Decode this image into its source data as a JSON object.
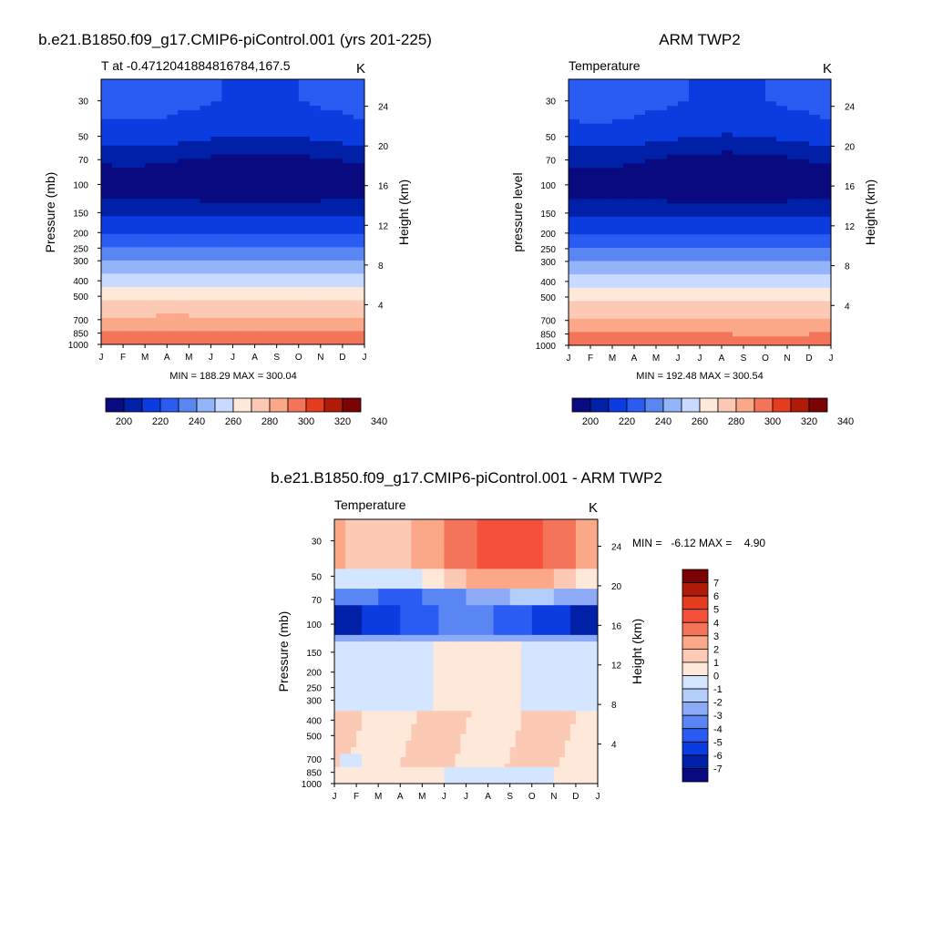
{
  "figure": {
    "panel1": {
      "title": "b.e21.B1850.f09_g17.CMIP6-piControl.001 (yrs 201-225)",
      "subtitle": "T at -0.47120418848167 84,167.5",
      "subtitle_exact": "T at -0.4712041884816784,167.5",
      "units": "K",
      "ylabel": "Pressure (mb)",
      "ylabel_right": "Height (km)",
      "minmax": "MIN = 188.29 MAX = 300.04"
    },
    "panel2": {
      "title": "ARM TWP2",
      "subtitle": "Temperature",
      "units": "K",
      "ylabel": "pressure level",
      "ylabel_right": "Height (km)",
      "minmax": "MIN = 192.48 MAX = 300.54"
    },
    "panel3": {
      "title": "b.e21.B1850.f09_g17.CMIP6-piControl.001 - ARM TWP2",
      "subtitle": "Temperature",
      "units": "K",
      "ylabel": "Pressure (mb)",
      "ylabel_right": "Height (km)",
      "minmax": "MIN =   -6.12 MAX =    4.90"
    }
  },
  "chart_data": [
    {
      "type": "heatmap",
      "panel": "model",
      "x_ticks": [
        "J",
        "F",
        "M",
        "A",
        "M",
        "J",
        "J",
        "A",
        "S",
        "O",
        "N",
        "D",
        "J"
      ],
      "y_ticks_pressure": [
        "30",
        "50",
        "70",
        "100",
        "150",
        "200",
        "250",
        "300",
        "400",
        "500",
        "700",
        "850",
        "1000"
      ],
      "y_ticks_height": [
        "24",
        "20",
        "16",
        "12",
        "8",
        "4"
      ],
      "ylog": true,
      "colorbar": {
        "tick_labels": [
          "200",
          "220",
          "240",
          "260",
          "280",
          "300",
          "320",
          "340"
        ],
        "colors": [
          "#0a0a80",
          "#0020a8",
          "#0a3ce0",
          "#2a5cf4",
          "#5a86f4",
          "#94b4fa",
          "#c8daff",
          "#fde8da",
          "#fccab4",
          "#fba888",
          "#f4745a",
          "#e43c1e",
          "#b01a08",
          "#7a0404"
        ]
      },
      "profile": [
        {
          "p": 30,
          "t": 222
        },
        {
          "p": 50,
          "t": 213
        },
        {
          "p": 70,
          "t": 199
        },
        {
          "p": 100,
          "t": 192
        },
        {
          "p": 140,
          "t": 204
        },
        {
          "p": 150,
          "t": 208
        },
        {
          "p": 200,
          "t": 219
        },
        {
          "p": 250,
          "t": 231
        },
        {
          "p": 300,
          "t": 241
        },
        {
          "p": 400,
          "t": 256
        },
        {
          "p": 500,
          "t": 267
        },
        {
          "p": 700,
          "t": 282
        },
        {
          "p": 850,
          "t": 291
        },
        {
          "p": 1000,
          "t": 299
        }
      ],
      "min": 188.29,
      "max": 300.04
    },
    {
      "type": "heatmap",
      "panel": "observation",
      "x_ticks": [
        "J",
        "F",
        "M",
        "A",
        "M",
        "J",
        "J",
        "A",
        "S",
        "O",
        "N",
        "D",
        "J"
      ],
      "y_ticks_pressure": [
        "30",
        "50",
        "70",
        "100",
        "150",
        "200",
        "250",
        "300",
        "400",
        "500",
        "700",
        "850",
        "1000"
      ],
      "y_ticks_height": [
        "24",
        "20",
        "16",
        "12",
        "8",
        "4"
      ],
      "ylog": true,
      "colorbar": {
        "tick_labels": [
          "200",
          "220",
          "240",
          "260",
          "280",
          "300",
          "320",
          "340"
        ],
        "colors": [
          "#0a0a80",
          "#0020a8",
          "#0a3ce0",
          "#2a5cf4",
          "#5a86f4",
          "#94b4fa",
          "#c8daff",
          "#fde8da",
          "#fccab4",
          "#fba888",
          "#f4745a",
          "#e43c1e",
          "#b01a08",
          "#7a0404"
        ]
      },
      "min": 192.48,
      "max": 300.54
    },
    {
      "type": "heatmap",
      "panel": "difference",
      "x_ticks": [
        "J",
        "F",
        "M",
        "A",
        "M",
        "J",
        "J",
        "A",
        "S",
        "O",
        "N",
        "D",
        "J"
      ],
      "y_ticks_pressure": [
        "30",
        "50",
        "70",
        "100",
        "150",
        "200",
        "250",
        "300",
        "400",
        "500",
        "700",
        "850",
        "1000"
      ],
      "y_ticks_height": [
        "24",
        "20",
        "16",
        "12",
        "8",
        "4"
      ],
      "ylog": true,
      "colorbar": {
        "tick_labels": [
          "7",
          "6",
          "5",
          "4",
          "3",
          "2",
          "1",
          "0",
          "-1",
          "-2",
          "-3",
          "-4",
          "-5",
          "-6",
          "-7"
        ],
        "colors": [
          "#7a0404",
          "#b01a08",
          "#e43c1e",
          "#f4503a",
          "#f4745a",
          "#fba888",
          "#fccab4",
          "#fde8da",
          "#d4e6ff",
          "#b4cefc",
          "#8caaf6",
          "#5a86f4",
          "#2a5cf4",
          "#0a3ce0",
          "#0020a8",
          "#0a0a80"
        ]
      },
      "min": -6.12,
      "max": 4.9
    }
  ]
}
